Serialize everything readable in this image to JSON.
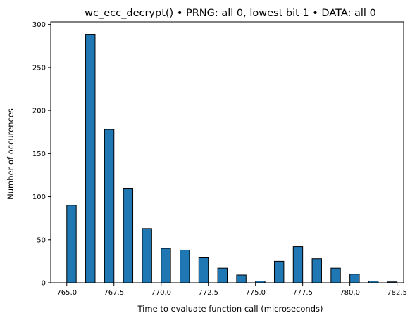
{
  "chart_data": {
    "type": "bar",
    "title": "wc_ecc_decrypt() • PRNG: all 0, lowest bit 1 • DATA: all 0",
    "xlabel": "Time to evaluate function call (microseconds)",
    "ylabel": "Number of occurences",
    "xlim": [
      764.15,
      782.85
    ],
    "ylim": [
      0,
      303
    ],
    "bar_width": 0.5,
    "x_ticks": [
      765.0,
      767.5,
      770.0,
      772.5,
      775.0,
      777.5,
      780.0,
      782.5
    ],
    "x_tick_labels": [
      "765.0",
      "767.5",
      "770.0",
      "772.5",
      "775.0",
      "777.5",
      "780.0",
      "782.5"
    ],
    "y_ticks": [
      0,
      50,
      100,
      150,
      200,
      250,
      300
    ],
    "y_tick_labels": [
      "0",
      "50",
      "100",
      "150",
      "200",
      "250",
      "300"
    ],
    "x": [
      765.25,
      766.25,
      767.25,
      768.25,
      769.25,
      770.25,
      771.25,
      772.25,
      773.25,
      774.25,
      775.25,
      776.25,
      777.25,
      778.25,
      779.25,
      780.25,
      781.25,
      782.25
    ],
    "values": [
      90,
      288,
      178,
      109,
      63,
      40,
      38,
      29,
      17,
      9,
      2,
      25,
      42,
      28,
      17,
      10,
      2,
      1
    ],
    "bar_color": "#1f77b4",
    "edge_color": "#000000",
    "grid": false,
    "legend": "none"
  }
}
